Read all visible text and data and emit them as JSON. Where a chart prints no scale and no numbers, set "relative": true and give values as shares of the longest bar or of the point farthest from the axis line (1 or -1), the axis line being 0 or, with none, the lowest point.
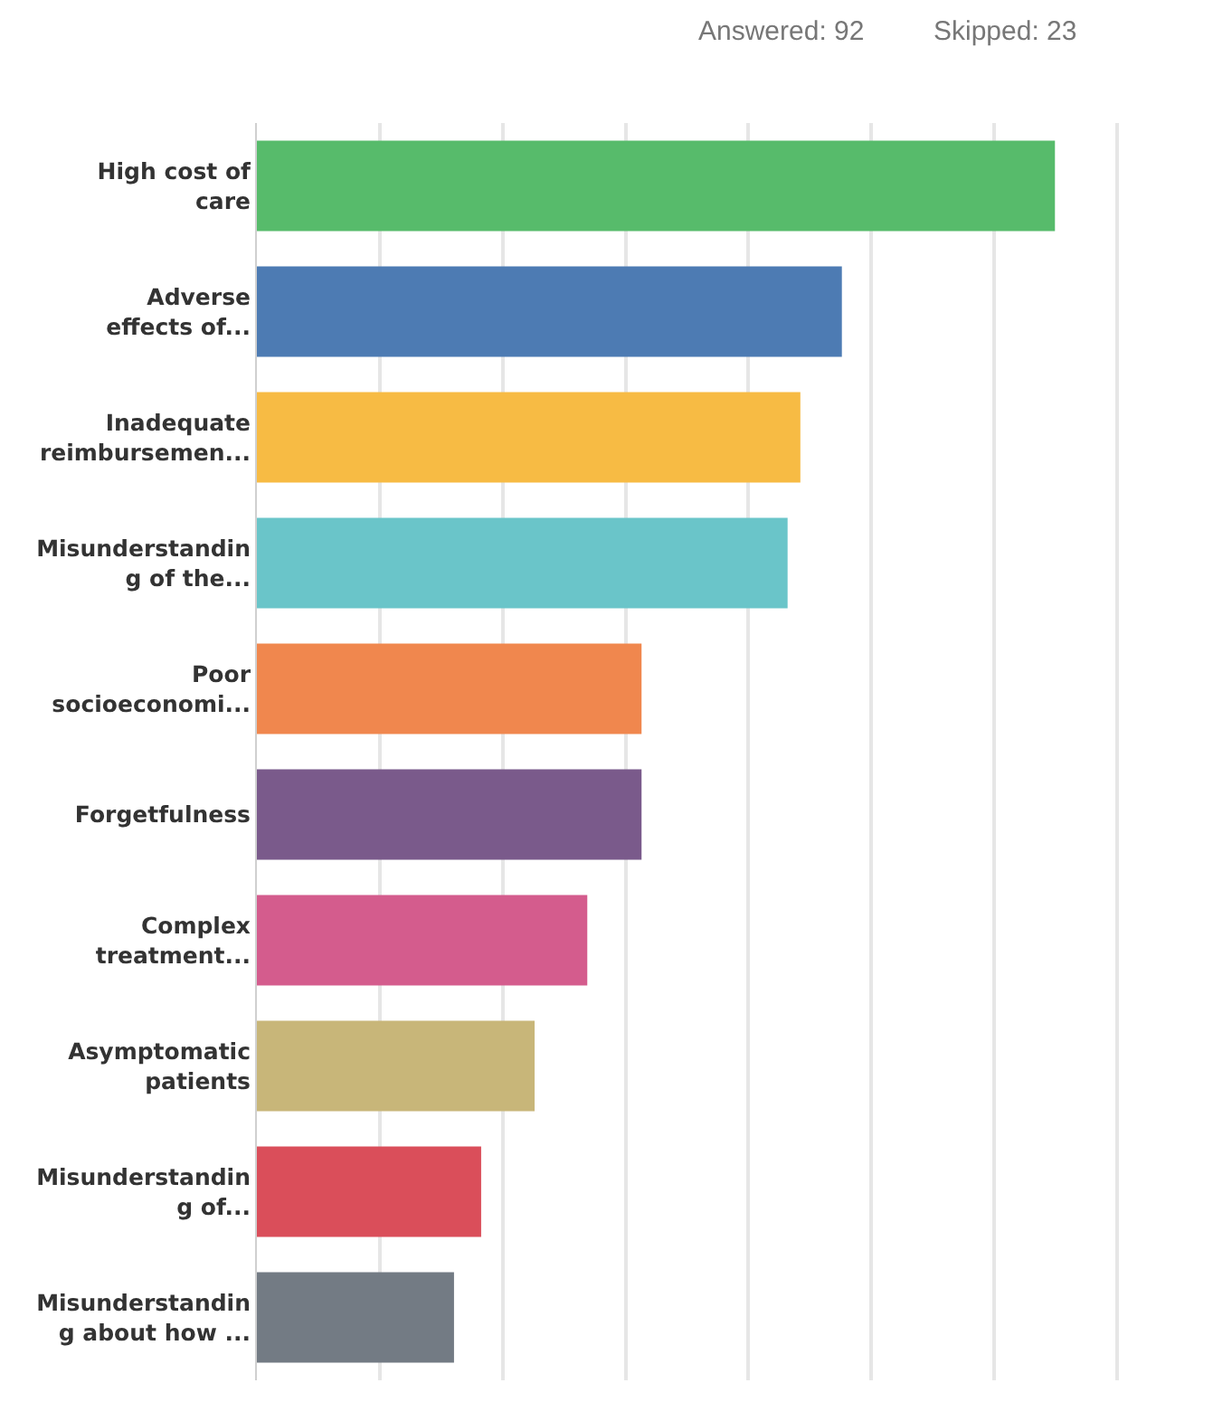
{
  "chart_data": {
    "type": "bar",
    "orientation": "horizontal",
    "relative": true,
    "grid": "x",
    "annotations": [
      "Answered: 92",
      "Skipped: 23"
    ],
    "categories": [
      "High cost of\ncare",
      "Adverse\neffects of...",
      "Inadequate\nreimbursemen...",
      "Misunderstandin\ng of the...",
      "Poor\nsocioeconomi...",
      "Forgetfulness",
      "Complex\ntreatment...",
      "Asymptomatic\npatients",
      "Misunderstandin\ng of...",
      "Misunderstandin\ng about how ..."
    ],
    "values": [
      1,
      0.733,
      0.681,
      0.665,
      0.482,
      0.482,
      0.414,
      0.348,
      0.281,
      0.247
    ],
    "colors": [
      "#57bb6b",
      "#4d7bb3",
      "#f7bb44",
      "#6ac5c9",
      "#f0874e",
      "#7a5a8b",
      "#d45c8d",
      "#c8b679",
      "#da4e5a",
      "#737b84"
    ]
  }
}
